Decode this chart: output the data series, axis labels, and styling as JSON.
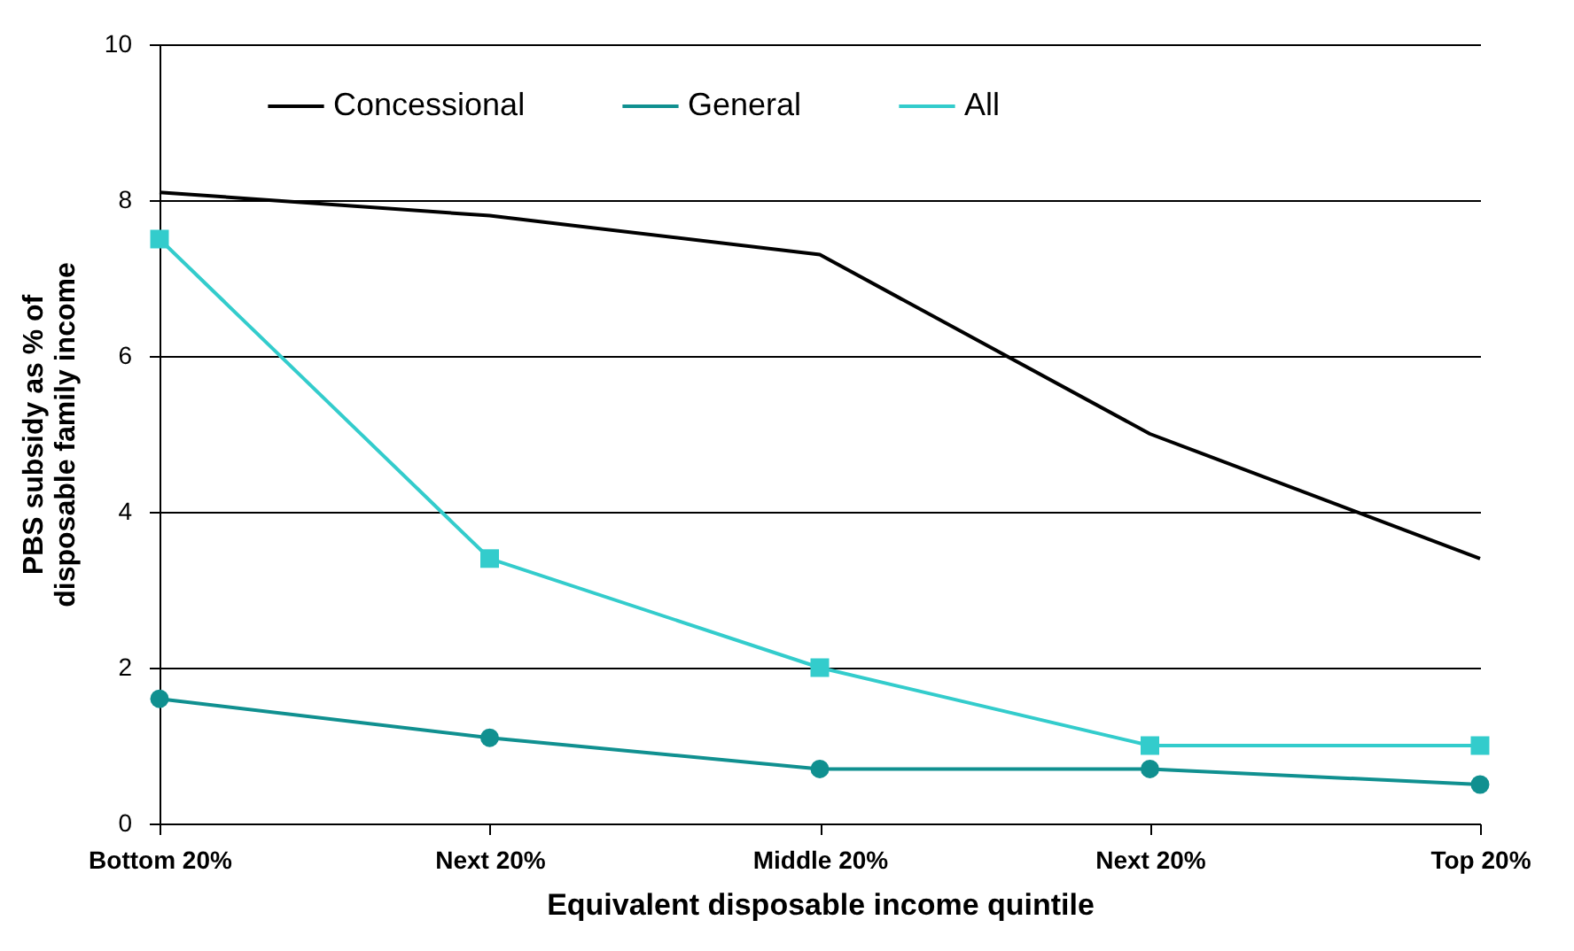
{
  "chart_data": {
    "type": "line",
    "xlabel": "Equivalent disposable income quintile",
    "ylabel": "PBS subsidy as % of disposable family income",
    "categories": [
      "Bottom 20%",
      "Next 20%",
      "Middle 20%",
      "Next 20%",
      "Top 20%"
    ],
    "series": [
      {
        "name": "Concessional",
        "color": "#000000",
        "marker": "none",
        "values": [
          8.1,
          7.8,
          7.3,
          5.0,
          3.4
        ]
      },
      {
        "name": "General",
        "color": "#109090",
        "marker": "circle",
        "values": [
          1.6,
          1.1,
          0.7,
          0.7,
          0.5
        ]
      },
      {
        "name": "All",
        "color": "#33cccc",
        "marker": "square",
        "values": [
          7.5,
          3.4,
          2.0,
          1.0,
          1.0
        ]
      }
    ],
    "ylim": [
      0,
      10
    ],
    "yticks": [
      0,
      2,
      4,
      6,
      8,
      10
    ],
    "grid": "y",
    "legend": "top",
    "line_style": "solid"
  }
}
